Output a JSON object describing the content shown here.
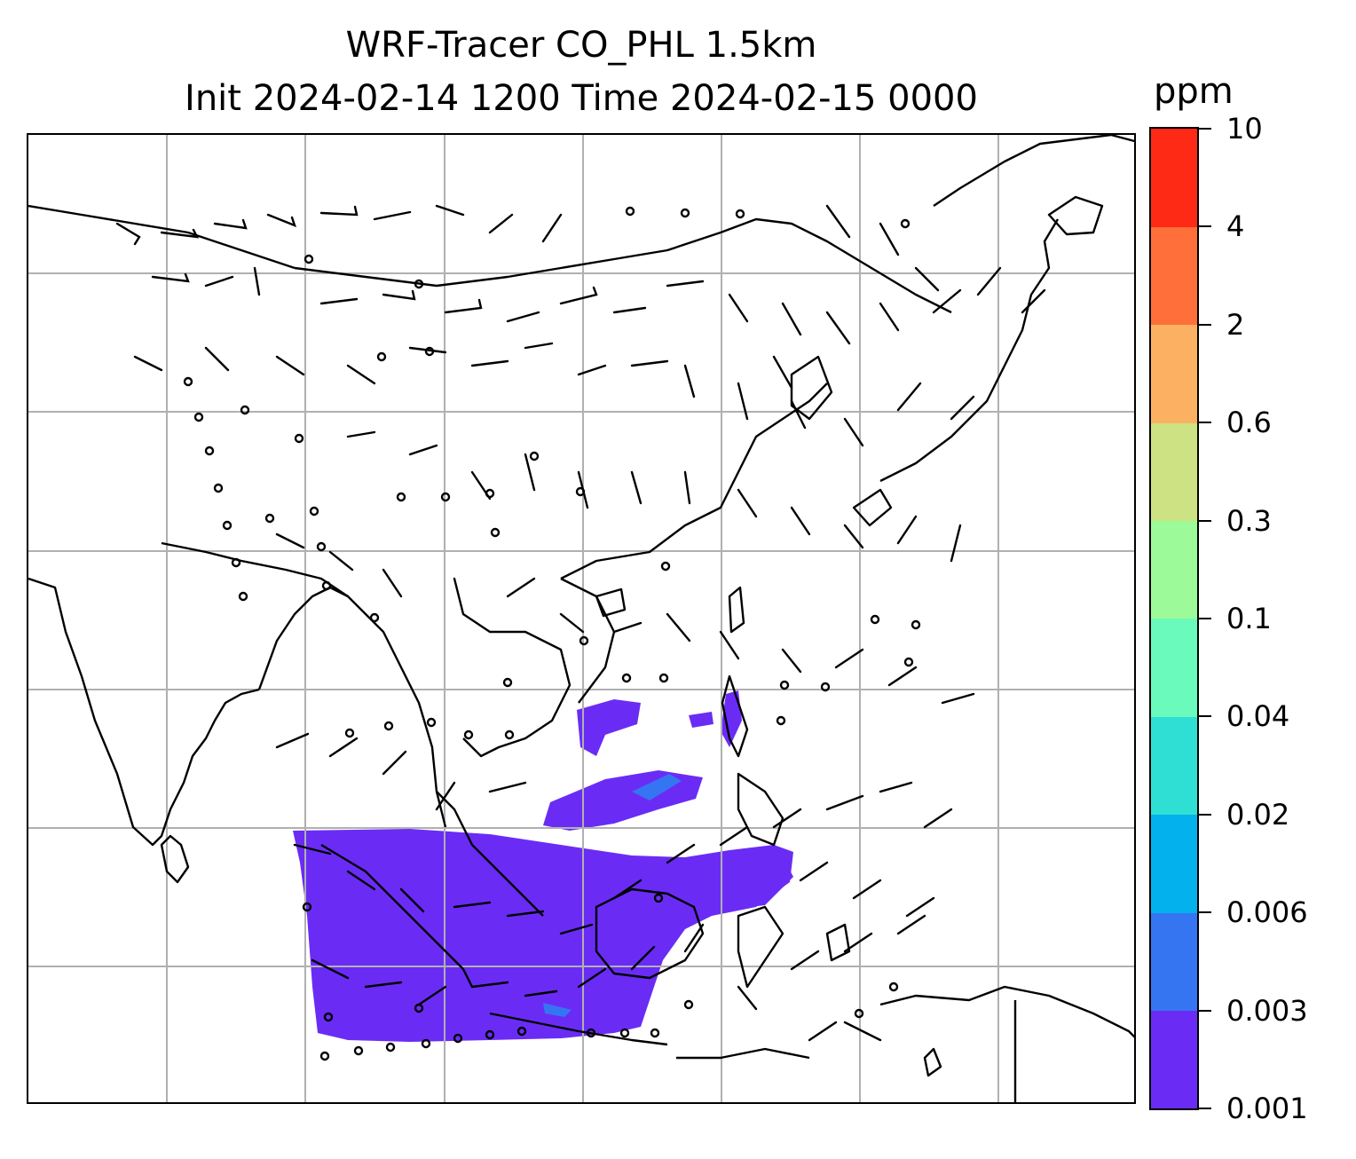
{
  "title": {
    "line1": "WRF-Tracer CO_PHL 1.5km",
    "line2": "Init 2024-02-14 1200 Time 2024-02-15 0000"
  },
  "colorbar": {
    "unit": "ppm",
    "ticks": [
      "0.001",
      "0.003",
      "0.006",
      "0.02",
      "0.04",
      "0.1",
      "0.3",
      "0.6",
      "2",
      "4",
      "10"
    ],
    "colors": [
      "#6a2cf5",
      "#3675f2",
      "#03b1ec",
      "#2fdfd4",
      "#6afbbc",
      "#9dfa98",
      "#cde283",
      "#fcb061",
      "#ff6f39",
      "#ff2a16"
    ]
  },
  "map": {
    "gridline_color": "#b0b0b0",
    "coastline_color": "#000000",
    "tracer_plume_level": "0.001"
  }
}
